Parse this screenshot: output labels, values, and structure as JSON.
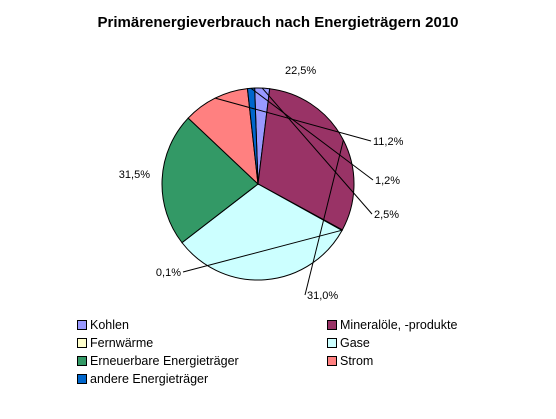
{
  "chart_data": {
    "type": "pie",
    "title": "Primärenergieverbrauch nach Energieträgern 2010",
    "slices": [
      {
        "name": "Kohlen",
        "value": 2.5,
        "label": "2,5%",
        "color": "#9999ff"
      },
      {
        "name": "Mineralöle, -produkte",
        "value": 31.0,
        "label": "31,0%",
        "color": "#993366"
      },
      {
        "name": "Fernwärme",
        "value": 0.1,
        "label": "0,1%",
        "color": "#ffffcc"
      },
      {
        "name": "Gase",
        "value": 31.5,
        "label": "31,5%",
        "color": "#ccffff"
      },
      {
        "name": "Erneuerbare Energieträger",
        "value": 22.5,
        "label": "22,5%",
        "color": "#339966"
      },
      {
        "name": "Strom",
        "value": 11.2,
        "label": "11,2%",
        "color": "#ff8080"
      },
      {
        "name": "andere Energieträger",
        "value": 1.2,
        "label": "1,2%",
        "color": "#0066cc"
      }
    ],
    "start_angle_deg": 92,
    "direction": "clockwise",
    "legend_position": "bottom"
  }
}
